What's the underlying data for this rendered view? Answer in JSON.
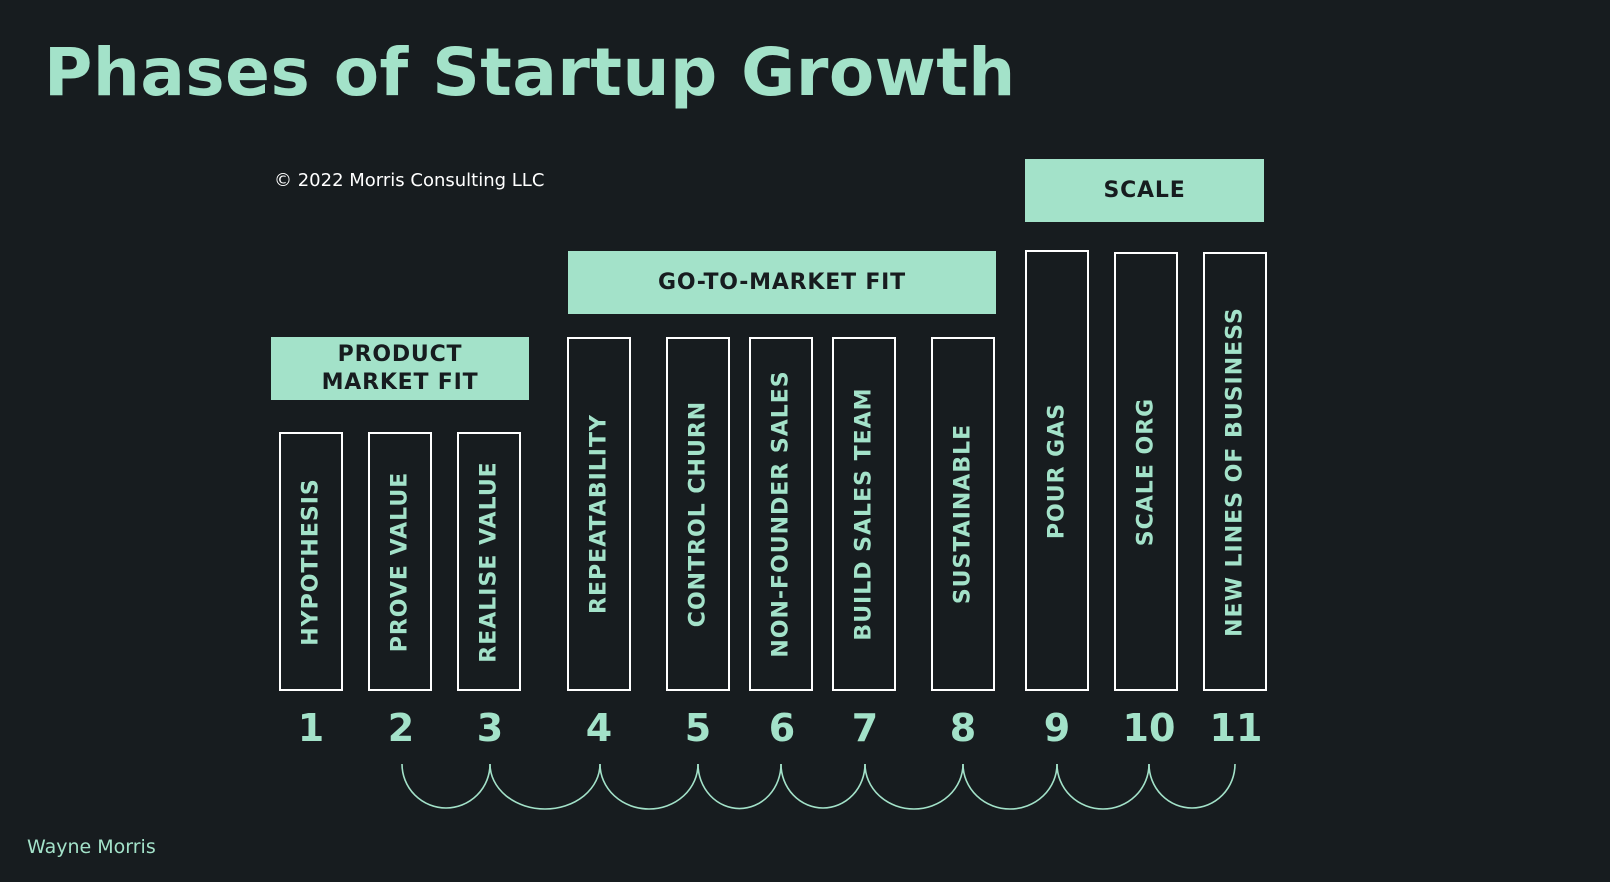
{
  "title": "Phases of Startup Growth",
  "copyright": "© 2022 Morris Consulting LLC",
  "author": "Wayne Morris",
  "colors": {
    "background": "#171c1f",
    "accent": "#a3e2c9",
    "outline": "#ffffff"
  },
  "phases": [
    {
      "label": "PRODUCT MARKET FIT"
    },
    {
      "label": "GO-TO-MARKET FIT"
    },
    {
      "label": "SCALE"
    }
  ],
  "steps": [
    {
      "number": "1",
      "label": "HYPOTHESIS"
    },
    {
      "number": "2",
      "label": "PROVE VALUE"
    },
    {
      "number": "3",
      "label": "REALISE VALUE"
    },
    {
      "number": "4",
      "label": "REPEATABILITY"
    },
    {
      "number": "5",
      "label": "CONTROL CHURN"
    },
    {
      "number": "6",
      "label": "NON-FOUNDER SALES"
    },
    {
      "number": "7",
      "label": "BUILD SALES TEAM"
    },
    {
      "number": "8",
      "label": "SUSTAINABLE"
    },
    {
      "number": "9",
      "label": "POUR GAS"
    },
    {
      "number": "10",
      "label": "SCALE ORG"
    },
    {
      "number": "11",
      "label": "NEW LINES OF BUSINESS"
    }
  ]
}
